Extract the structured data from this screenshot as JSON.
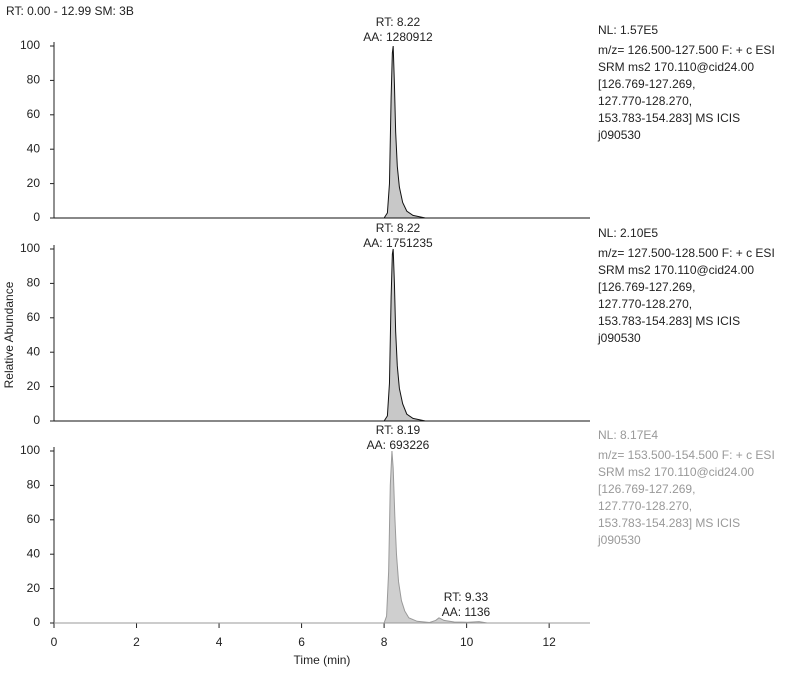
{
  "header": "RT: 0.00 - 12.99 SM: 3B",
  "chart_data": [
    {
      "type": "area",
      "color": "#111",
      "fill": "#c8c8c8",
      "text_color": "#222",
      "x": [
        0,
        8.0,
        8.08,
        8.13,
        8.17,
        8.2,
        8.22,
        8.25,
        8.28,
        8.32,
        8.37,
        8.45,
        8.55,
        8.7,
        9.0,
        12.99
      ],
      "values": [
        0,
        0,
        3,
        20,
        70,
        96,
        100,
        78,
        50,
        30,
        18,
        9,
        4,
        1.5,
        0,
        0
      ],
      "xlim": [
        0,
        12.99
      ],
      "ylim": [
        0,
        100
      ],
      "yticks": [
        0,
        20,
        40,
        60,
        80,
        100
      ],
      "annotations": [
        [
          "RT: 8.22",
          "AA: 1280912"
        ]
      ],
      "info": [
        "NL: 1.57E5",
        "m/z= 126.500-127.500 F: + c ESI",
        "SRM ms2 170.110@cid24.00",
        "[126.769-127.269,",
        "127.770-128.270,",
        "153.783-154.283]  MS  ICIS",
        "j090530"
      ]
    },
    {
      "type": "area",
      "color": "#111",
      "fill": "#c8c8c8",
      "text_color": "#222",
      "x": [
        0,
        8.0,
        8.08,
        8.13,
        8.17,
        8.2,
        8.22,
        8.25,
        8.28,
        8.32,
        8.37,
        8.45,
        8.55,
        8.7,
        9.0,
        12.99
      ],
      "values": [
        0,
        0,
        3,
        22,
        72,
        97,
        100,
        80,
        52,
        32,
        19,
        10,
        4,
        1.5,
        0,
        0
      ],
      "xlim": [
        0,
        12.99
      ],
      "ylim": [
        0,
        100
      ],
      "yticks": [
        0,
        20,
        40,
        60,
        80,
        100
      ],
      "ylabel": "Relative Abundance",
      "annotations": [
        [
          "RT: 8.22",
          "AA: 1751235"
        ]
      ],
      "info": [
        "NL: 2.10E5",
        "m/z= 127.500-128.500 F: + c ESI",
        "SRM ms2 170.110@cid24.00",
        "[126.769-127.269,",
        "127.770-128.270,",
        "153.783-154.283]  MS  ICIS",
        "j090530"
      ]
    },
    {
      "type": "area",
      "color": "#999",
      "fill": "#cfcfcf",
      "text_color": "#999",
      "x": [
        0,
        8.0,
        8.06,
        8.11,
        8.15,
        8.19,
        8.22,
        8.26,
        8.3,
        8.35,
        8.42,
        8.5,
        8.6,
        8.8,
        9.1,
        9.25,
        9.33,
        9.45,
        9.7,
        10.0,
        10.3,
        10.5,
        12.99
      ],
      "values": [
        0,
        0,
        4,
        30,
        80,
        100,
        90,
        62,
        40,
        24,
        13,
        7,
        3,
        1,
        0.3,
        1.5,
        3,
        1.5,
        0.6,
        0.4,
        0.8,
        0,
        0
      ],
      "xlim": [
        0,
        12.99
      ],
      "ylim": [
        0,
        100
      ],
      "yticks": [
        0,
        20,
        40,
        60,
        80,
        100
      ],
      "xticks": [
        0,
        2,
        4,
        6,
        8,
        10,
        12
      ],
      "xlabel": "Time (min)",
      "annotations": [
        [
          "RT: 8.19",
          "AA: 693226"
        ],
        [
          "RT: 9.33",
          "AA: 1136"
        ]
      ],
      "info": [
        "NL: 8.17E4",
        "m/z= 153.500-154.500 F: + c ESI",
        "SRM ms2 170.110@cid24.00",
        "[126.769-127.269,",
        "127.770-128.270,",
        "153.783-154.283]  MS  ICIS",
        "j090530"
      ]
    }
  ]
}
